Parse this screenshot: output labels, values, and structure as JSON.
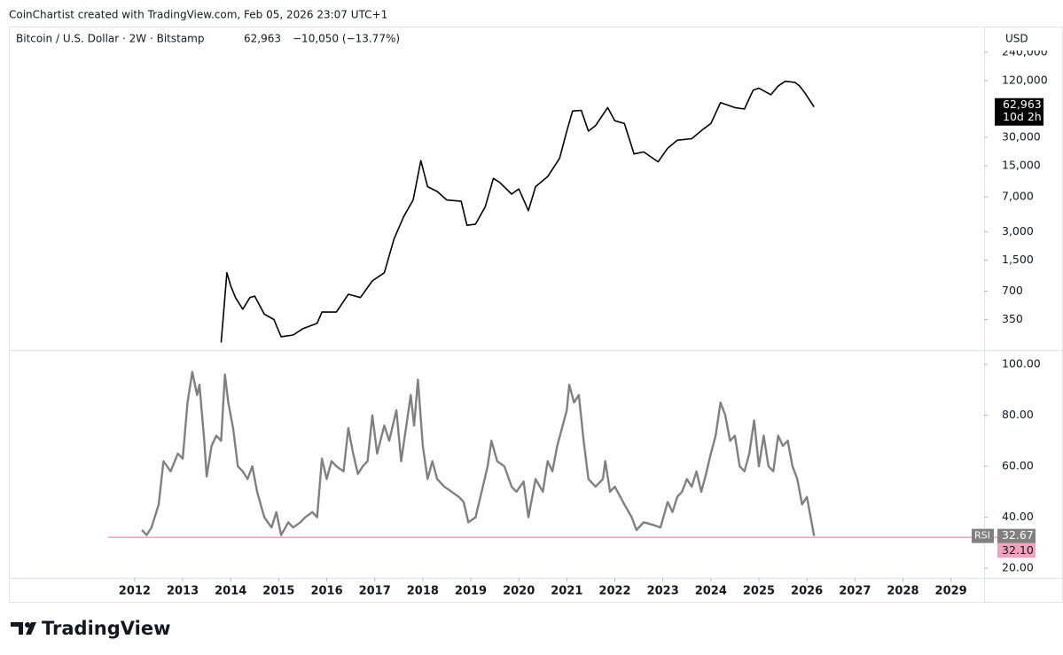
{
  "attribution": "CoinChartist created with TradingView.com, Feb 05, 2026 23:07 UTC+1",
  "logo": "TradingView",
  "chart_data": [
    {
      "type": "line",
      "title": "Bitcoin / U.S. Dollar · 2W · Bitstamp",
      "legend_price": "62,963",
      "change": "−10,050 (−13.77%)",
      "y_unit": "USD",
      "log_scale": true,
      "color": "#000000",
      "xlim": [
        2009.38,
        2029.69
      ],
      "ylim": [
        166,
        449000
      ],
      "yticks": [
        {
          "value": 240000,
          "label": "240,000"
        },
        {
          "value": 120000,
          "label": "120,000"
        },
        {
          "value": 30000,
          "label": "30,000"
        },
        {
          "value": 15000,
          "label": "15,000"
        },
        {
          "value": 7000,
          "label": "7,000"
        },
        {
          "value": 3000,
          "label": "3,000"
        },
        {
          "value": 1500,
          "label": "1,500"
        },
        700,
        350
      ],
      "x": [
        2013.8,
        2013.85,
        2013.92,
        2014.0,
        2014.1,
        2014.25,
        2014.4,
        2014.5,
        2014.7,
        2014.9,
        2015.05,
        2015.3,
        2015.5,
        2015.8,
        2015.9,
        2016.2,
        2016.45,
        2016.7,
        2016.95,
        2017.2,
        2017.4,
        2017.6,
        2017.8,
        2017.96,
        2018.1,
        2018.3,
        2018.5,
        2018.8,
        2018.92,
        2019.1,
        2019.3,
        2019.47,
        2019.6,
        2019.85,
        2020.0,
        2020.2,
        2020.35,
        2020.6,
        2020.85,
        2021.0,
        2021.12,
        2021.3,
        2021.45,
        2021.6,
        2021.85,
        2022.0,
        2022.2,
        2022.4,
        2022.6,
        2022.9,
        2023.1,
        2023.3,
        2023.6,
        2023.85,
        2024.0,
        2024.2,
        2024.5,
        2024.7,
        2024.88,
        2025.0,
        2025.25,
        2025.4,
        2025.55,
        2025.75,
        2025.85,
        2025.95,
        2026.15
      ],
      "values": [
        200,
        400,
        1100,
        800,
        600,
        450,
        600,
        620,
        400,
        350,
        230,
        240,
        280,
        320,
        420,
        420,
        650,
        600,
        900,
        1100,
        2500,
        4300,
        6500,
        17000,
        9000,
        8000,
        6500,
        6300,
        3500,
        3600,
        5500,
        11000,
        10000,
        7500,
        8500,
        5000,
        9000,
        11500,
        18000,
        35000,
        57000,
        58000,
        35000,
        40000,
        62000,
        45000,
        42000,
        20000,
        21000,
        16500,
        23000,
        28000,
        29000,
        37000,
        42000,
        70000,
        62000,
        60000,
        95000,
        100000,
        85000,
        105000,
        118000,
        115000,
        105000,
        90000,
        62963
      ],
      "last_price": {
        "value": 62963,
        "label": "62,963"
      },
      "countdown": "10d 2h"
    },
    {
      "type": "line",
      "name": "RSI",
      "color": "#808080",
      "xlim": [
        2009.38,
        2029.69
      ],
      "ylim": [
        16.2,
        105.6
      ],
      "yticks": [
        {
          "value": 100,
          "label": "100.00"
        },
        {
          "value": 80,
          "label": "80.00"
        },
        {
          "value": 60,
          "label": "60.00"
        },
        {
          "value": 40,
          "label": "40.00"
        },
        {
          "value": 20,
          "label": "20.00"
        }
      ],
      "xticks": [
        2012,
        2013,
        2014,
        2015,
        2016,
        2017,
        2018,
        2019,
        2020,
        2021,
        2022,
        2023,
        2024,
        2025,
        2026,
        2027,
        2028,
        2029
      ],
      "x": [
        2012.15,
        2012.25,
        2012.35,
        2012.5,
        2012.6,
        2012.75,
        2012.9,
        2013.0,
        2013.1,
        2013.2,
        2013.3,
        2013.35,
        2013.45,
        2013.5,
        2013.6,
        2013.7,
        2013.8,
        2013.88,
        2013.95,
        2014.05,
        2014.15,
        2014.25,
        2014.35,
        2014.45,
        2014.55,
        2014.7,
        2014.85,
        2014.95,
        2015.05,
        2015.2,
        2015.3,
        2015.45,
        2015.55,
        2015.7,
        2015.8,
        2015.9,
        2016.0,
        2016.1,
        2016.2,
        2016.35,
        2016.45,
        2016.55,
        2016.65,
        2016.75,
        2016.85,
        2016.95,
        2017.05,
        2017.2,
        2017.3,
        2017.45,
        2017.55,
        2017.65,
        2017.75,
        2017.82,
        2017.9,
        2018.0,
        2018.1,
        2018.2,
        2018.3,
        2018.45,
        2018.6,
        2018.75,
        2018.85,
        2018.95,
        2019.1,
        2019.25,
        2019.35,
        2019.43,
        2019.55,
        2019.7,
        2019.85,
        2019.95,
        2020.1,
        2020.2,
        2020.35,
        2020.5,
        2020.6,
        2020.7,
        2020.8,
        2020.9,
        2021.0,
        2021.05,
        2021.15,
        2021.25,
        2021.35,
        2021.45,
        2021.6,
        2021.75,
        2021.8,
        2021.9,
        2022.0,
        2022.2,
        2022.35,
        2022.45,
        2022.6,
        2022.8,
        2022.95,
        2023.1,
        2023.2,
        2023.3,
        2023.4,
        2023.5,
        2023.6,
        2023.7,
        2023.8,
        2023.9,
        2024.0,
        2024.1,
        2024.2,
        2024.3,
        2024.4,
        2024.5,
        2024.6,
        2024.7,
        2024.8,
        2024.9,
        2025.0,
        2025.1,
        2025.2,
        2025.3,
        2025.4,
        2025.5,
        2025.6,
        2025.7,
        2025.8,
        2025.9,
        2026.0,
        2026.15
      ],
      "values": [
        35,
        33,
        36,
        45,
        62,
        58,
        65,
        63,
        85,
        97,
        88,
        92,
        70,
        56,
        68,
        72,
        70,
        96,
        85,
        75,
        60,
        58,
        55,
        60,
        50,
        40,
        36,
        42,
        33,
        38,
        36,
        38,
        40,
        42,
        40,
        63,
        55,
        62,
        60,
        58,
        75,
        65,
        57,
        60,
        62,
        80,
        65,
        76,
        70,
        82,
        62,
        75,
        88,
        76,
        94,
        68,
        55,
        62,
        55,
        52,
        50,
        48,
        46,
        38,
        40,
        52,
        60,
        70,
        62,
        60,
        52,
        50,
        54,
        40,
        55,
        50,
        62,
        58,
        68,
        75,
        82,
        92,
        85,
        88,
        70,
        55,
        52,
        55,
        62,
        50,
        52,
        45,
        40,
        35,
        38,
        37,
        36,
        46,
        42,
        48,
        50,
        55,
        52,
        58,
        50,
        57,
        65,
        72,
        85,
        80,
        70,
        72,
        60,
        58,
        65,
        78,
        60,
        72,
        60,
        58,
        72,
        68,
        70,
        60,
        55,
        45,
        48,
        32.67
      ],
      "last_value": {
        "value": 32.67,
        "label": "32.67"
      },
      "level": {
        "value": 32.1,
        "label": "32.10",
        "color": "#f2a2bb"
      }
    }
  ]
}
